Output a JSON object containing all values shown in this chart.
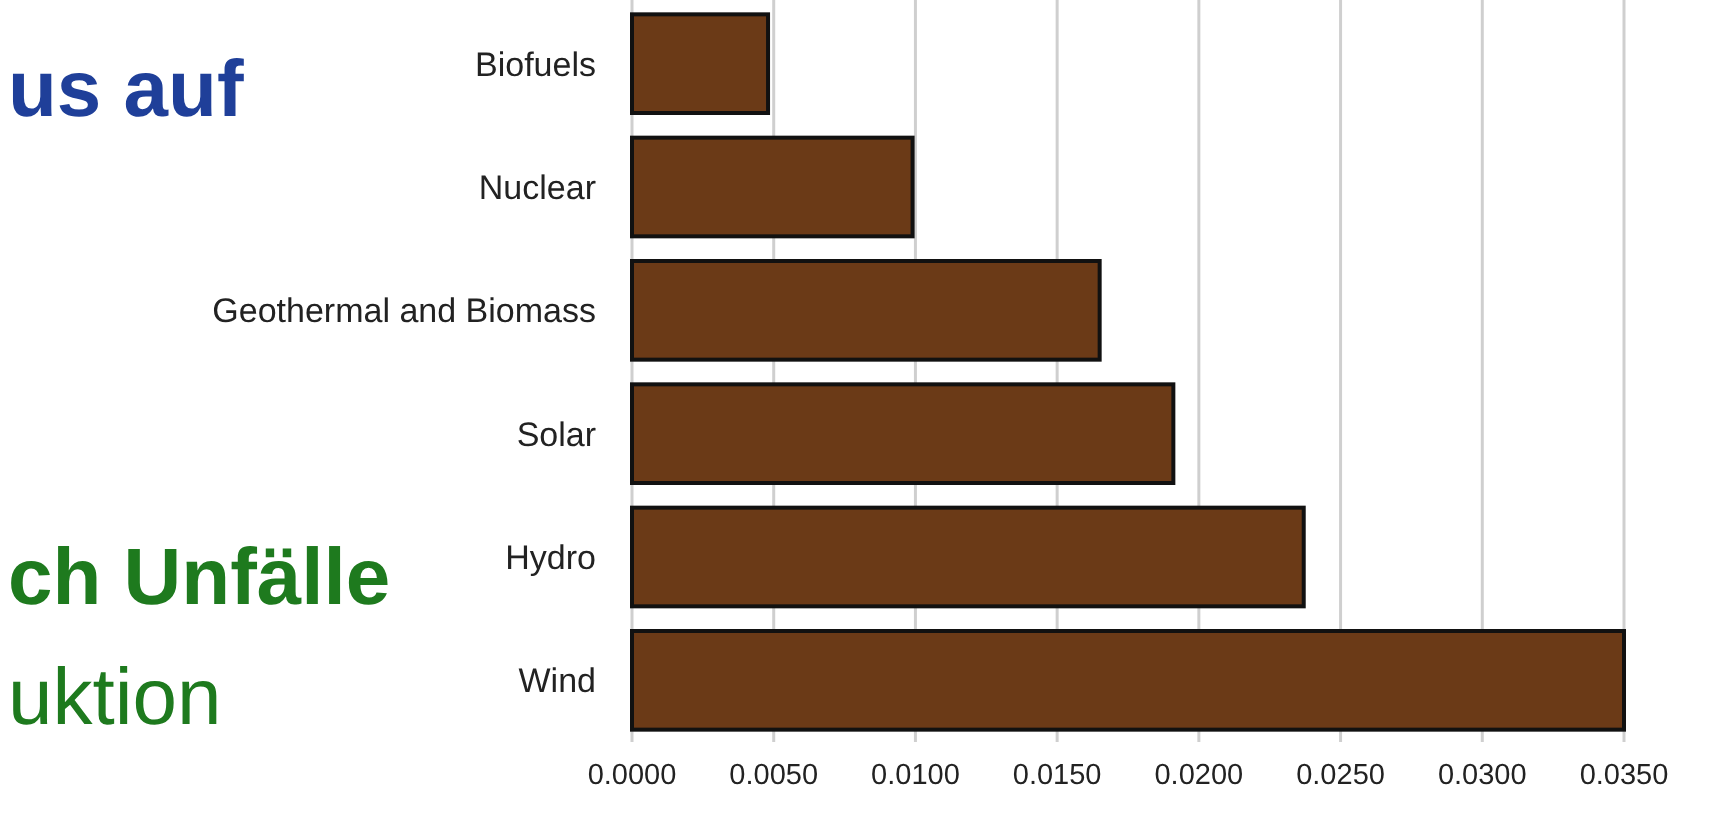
{
  "chart_data": {
    "type": "bar",
    "orientation": "horizontal",
    "categories": [
      "Biofuels",
      "Nuclear",
      "Geothermal and Biomass",
      "Solar",
      "Hydro",
      "Wind"
    ],
    "values": [
      0.0048,
      0.0099,
      0.0165,
      0.0191,
      0.0237,
      0.035
    ],
    "color": "#6b3a17",
    "xlim": [
      0,
      0.035
    ],
    "xticks": [
      {
        "value": 0,
        "label": "0.0000"
      },
      {
        "value": 0.005,
        "label": "0.0050"
      },
      {
        "value": 0.01,
        "label": "0.0100"
      },
      {
        "value": 0.015,
        "label": "0.0150"
      },
      {
        "value": 0.02,
        "label": "0.0200"
      },
      {
        "value": 0.025,
        "label": "0.0250"
      },
      {
        "value": 0.03,
        "label": "0.0300"
      },
      {
        "value": 0.035,
        "label": "0.0350"
      }
    ],
    "grid": "x",
    "annotations": [
      "us auf",
      "ch Unfälle",
      "uktion"
    ]
  }
}
